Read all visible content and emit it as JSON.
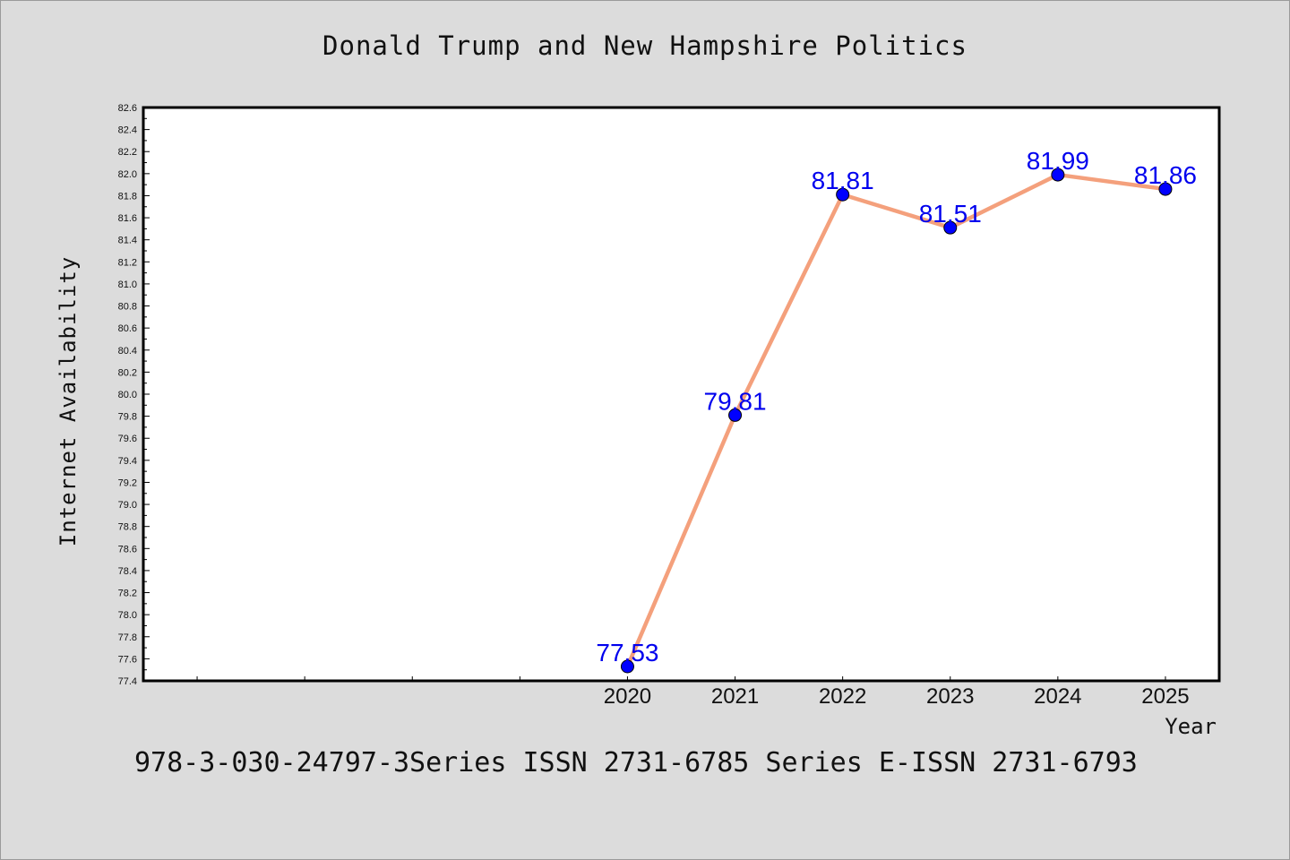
{
  "page": {
    "title": "Donald Trump and New Hampshire Politics",
    "footer": "978-3-030-24797-3Series ISSN 2731-6785 Series E-ISSN 2731-6793"
  },
  "colors": {
    "background": "#dcdcdc",
    "plot_background": "#ffffff",
    "line": "#f4a07c",
    "marker": "#0000ff",
    "data_label": "#0000ee"
  },
  "chart_data": {
    "type": "line",
    "title": "Donald Trump and New Hampshire Politics",
    "xlabel": "Year",
    "ylabel": "Internet Availability",
    "x": [
      2020,
      2021,
      2022,
      2023,
      2024,
      2025
    ],
    "xlim": [
      2015.5,
      2025.5
    ],
    "ylim": [
      77.4,
      82.6
    ],
    "ytick_step": 0.2,
    "series": [
      {
        "values": [
          77.53,
          79.81,
          81.81,
          81.51,
          81.99,
          81.86
        ],
        "labels": [
          "77.53",
          "79.81",
          "81.81",
          "81.51",
          "81.99",
          "81.86"
        ]
      }
    ],
    "grid": false,
    "legend": "none"
  }
}
